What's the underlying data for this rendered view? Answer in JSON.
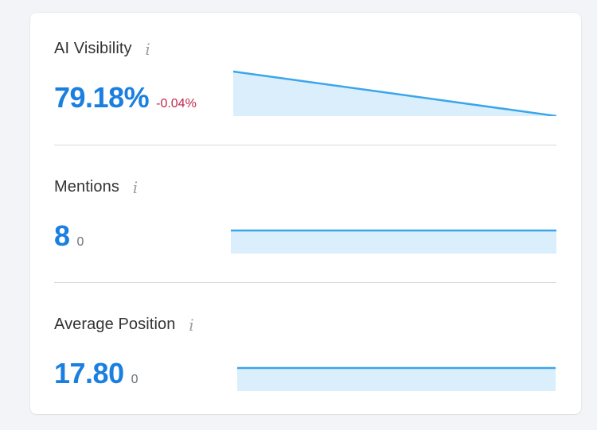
{
  "metrics": [
    {
      "title": "AI Visibility",
      "value": "79.18%",
      "delta": "-0.04%",
      "delta_trend": "negative",
      "sparkline": [
        79.22,
        79.18
      ]
    },
    {
      "title": "Mentions",
      "value": "8",
      "delta": "0",
      "delta_trend": "neutral",
      "sparkline": [
        8,
        8
      ]
    },
    {
      "title": "Average Position",
      "value": "17.80",
      "delta": "0",
      "delta_trend": "neutral",
      "sparkline": [
        17.8,
        17.8
      ]
    }
  ],
  "info_icon": "info-icon",
  "colors": {
    "value": "#1a7fe0",
    "delta_negative": "#c2264b",
    "delta_neutral": "#6b7078",
    "sparkline_line": "#3aa6ea",
    "sparkline_fill": "#dbeefc"
  }
}
